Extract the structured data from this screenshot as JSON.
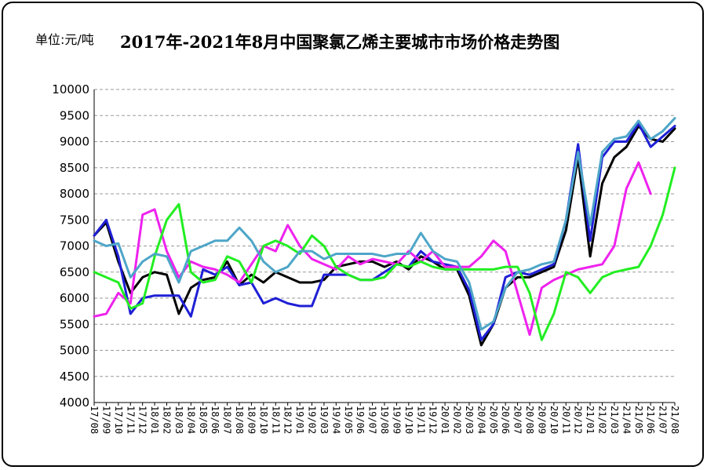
{
  "unit_label": "单位:元/吨",
  "title": "2017年-2021年8月中国聚氯乙烯主要城市市场价格走势图",
  "chart_data": {
    "type": "line",
    "title": "2017年-2021年8月中国聚氯乙烯主要城市市场价格走势图",
    "unit": "单位:元/吨",
    "ylim": [
      4000,
      10000
    ],
    "yticks": [
      4000,
      4500,
      5000,
      5500,
      6000,
      6500,
      7000,
      7500,
      8000,
      8500,
      9000,
      9500,
      10000
    ],
    "grid": true,
    "legend": "none",
    "x_tick_labels": [
      "17/08",
      "17/09",
      "17/10",
      "17/11",
      "17/12",
      "18/01",
      "18/02",
      "18/03",
      "18/04",
      "18/05",
      "18/06",
      "18/07",
      "18/08",
      "18/09",
      "18/10",
      "18/11",
      "18/12",
      "19/01",
      "19/02",
      "19/03",
      "19/04",
      "19/05",
      "19/06",
      "19/07",
      "19/08",
      "19/09",
      "19/10",
      "19/11",
      "19/12",
      "20/01",
      "20/02",
      "20/03",
      "20/04",
      "20/05",
      "20/06",
      "20/07",
      "20/08",
      "20/09",
      "20/10",
      "20/11",
      "20/12",
      "21/01",
      "21/02",
      "21/03",
      "21/04",
      "21/05",
      "21/06",
      "21/07",
      "21/08"
    ],
    "series": [
      {
        "color": "#000000",
        "values": [
          7200,
          7450,
          6700,
          6100,
          6400,
          6500,
          6450,
          5700,
          6200,
          6350,
          6400,
          6700,
          6250,
          6450,
          6300,
          6500,
          6400,
          6300,
          6300,
          6350,
          6600,
          6650,
          6700,
          6700,
          6600,
          6700,
          6550,
          6800,
          6700,
          6550,
          6550,
          6050,
          5100,
          5500,
          6200,
          6400,
          6400,
          6500,
          6600,
          7300,
          8700,
          6800,
          8200,
          8700,
          8900,
          9300,
          9050,
          9000,
          9250
        ]
      },
      {
        "color": "#1f1fd6",
        "values": [
          7200,
          7500,
          6800,
          5700,
          6000,
          6050,
          6050,
          6050,
          5650,
          6550,
          6450,
          6600,
          6250,
          6300,
          5900,
          6000,
          5900,
          5850,
          5850,
          6450,
          6450,
          6450,
          6350,
          6350,
          6500,
          6650,
          6600,
          6900,
          6700,
          6650,
          6600,
          6150,
          5200,
          5500,
          6400,
          6500,
          6450,
          6550,
          6650,
          7500,
          8950,
          7100,
          8700,
          9000,
          9000,
          9350,
          8900,
          9100,
          9300
        ]
      },
      {
        "color": "#ee22ee",
        "values": [
          5650,
          5700,
          6100,
          5900,
          7600,
          7700,
          6900,
          6400,
          6700,
          6600,
          6550,
          6450,
          6300,
          6650,
          7000,
          6900,
          7400,
          7000,
          6750,
          6650,
          6550,
          6800,
          6650,
          6750,
          6700,
          6650,
          6900,
          6700,
          6900,
          6600,
          6600,
          6600,
          6800,
          7100,
          6900,
          6100,
          5300,
          6200,
          6350,
          6450,
          6550,
          6600,
          6650,
          7000,
          8100,
          8600,
          8000,
          null,
          null
        ]
      },
      {
        "color": "#22ee22",
        "values": [
          6500,
          6400,
          6300,
          5800,
          5900,
          6800,
          7500,
          7800,
          6500,
          6300,
          6350,
          6800,
          6700,
          6300,
          7000,
          7100,
          7000,
          6850,
          7200,
          7000,
          6600,
          6450,
          6350,
          6350,
          6400,
          6650,
          6600,
          6700,
          6600,
          6550,
          6550,
          6550,
          6550,
          6550,
          6600,
          6600,
          6100,
          5200,
          5700,
          6500,
          6400,
          6100,
          6400,
          6500,
          6550,
          6600,
          7000,
          7600,
          8500
        ]
      },
      {
        "color": "#4ea6c8",
        "values": [
          7100,
          7000,
          7050,
          6400,
          6700,
          6850,
          6800,
          6300,
          6900,
          7000,
          7100,
          7100,
          7350,
          7100,
          6700,
          6500,
          6600,
          6900,
          6900,
          6750,
          6850,
          6850,
          6850,
          6850,
          6800,
          6850,
          6850,
          7250,
          6900,
          6750,
          6700,
          6300,
          5400,
          5550,
          6200,
          6500,
          6550,
          6650,
          6700,
          7500,
          8800,
          7400,
          8800,
          9050,
          9100,
          9400,
          9050,
          9200,
          9450
        ]
      }
    ]
  }
}
